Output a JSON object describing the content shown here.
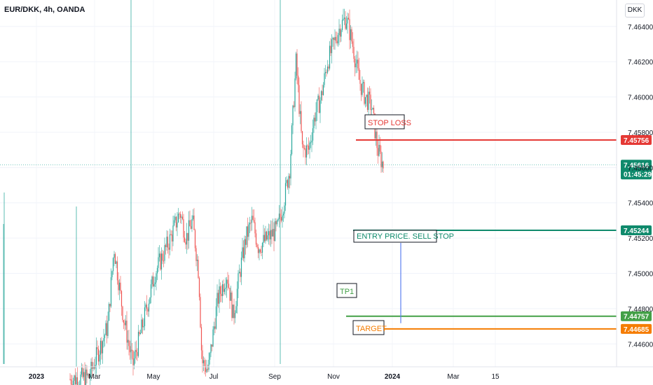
{
  "header": {
    "title": "EUR/DKK, 4h, OANDA",
    "currency_button": "DKK"
  },
  "colors": {
    "up": "#26a69a",
    "down": "#ef5350",
    "stop": "#e53935",
    "entry": "#0f8a6c",
    "tp": "#43a047",
    "target": "#f57c00",
    "link": "#5b7ff0"
  },
  "chart_data": {
    "type": "candlestick",
    "title": "EUR/DKK, 4h, OANDA",
    "y_ticks": [
      "7.46400",
      "7.46200",
      "7.46000",
      "7.45800",
      "7.45600",
      "7.45400",
      "7.45200",
      "7.45000",
      "7.44800",
      "7.44600"
    ],
    "ylim": [
      7.4447,
      7.4655
    ],
    "x_ticks": [
      {
        "label": "2023",
        "bold": true
      },
      {
        "label": "Mar",
        "bold": false
      },
      {
        "label": "May",
        "bold": false
      },
      {
        "label": "Jul",
        "bold": false
      },
      {
        "label": "Sep",
        "bold": false
      },
      {
        "label": "Nov",
        "bold": false
      },
      {
        "label": "2024",
        "bold": true
      },
      {
        "label": "Mar",
        "bold": false
      },
      {
        "label": "15",
        "bold": false
      }
    ],
    "grid": true,
    "price_tags": [
      {
        "key": "stop",
        "value": "7.45756"
      },
      {
        "key": "current",
        "value": "7.45616",
        "countdown": "01:45:29"
      },
      {
        "key": "entry",
        "value": "7.45244"
      },
      {
        "key": "tp",
        "value": "7.44757"
      },
      {
        "key": "target",
        "value": "7.44685"
      }
    ],
    "levels": [
      {
        "name": "STOP LOSS",
        "price": 7.45756
      },
      {
        "name": "ENTRY PRICE. SELL STOP",
        "price": 7.45244
      },
      {
        "name": "TP1",
        "price": 7.44757
      },
      {
        "name": "TARGET",
        "price": 7.44685
      }
    ],
    "current_price": 7.45616,
    "annotations": {
      "stop": "STOP LOSS",
      "entry": "ENTRY PRICE. SELL STOP",
      "tp": "TP1",
      "target": "TARGET"
    },
    "price_path": [
      [
        0,
        7.444
      ],
      [
        0.06,
        7.4441
      ],
      [
        0.12,
        7.447
      ],
      [
        0.14,
        7.4515
      ],
      [
        0.17,
        7.4475
      ],
      [
        0.2,
        7.4448
      ],
      [
        0.23,
        7.447
      ],
      [
        0.27,
        7.45
      ],
      [
        0.32,
        7.452
      ],
      [
        0.35,
        7.4535
      ],
      [
        0.37,
        7.452
      ],
      [
        0.39,
        7.453
      ],
      [
        0.41,
        7.45
      ],
      [
        0.42,
        7.445
      ],
      [
        0.44,
        7.4445
      ],
      [
        0.47,
        7.4485
      ],
      [
        0.5,
        7.45
      ],
      [
        0.52,
        7.4475
      ],
      [
        0.54,
        7.45
      ],
      [
        0.56,
        7.452
      ],
      [
        0.58,
        7.453
      ],
      [
        0.6,
        7.4515
      ],
      [
        0.63,
        7.452
      ],
      [
        0.66,
        7.4525
      ],
      [
        0.68,
        7.454
      ],
      [
        0.7,
        7.456
      ],
      [
        0.72,
        7.462
      ],
      [
        0.74,
        7.457
      ],
      [
        0.76,
        7.457
      ],
      [
        0.78,
        7.459
      ],
      [
        0.8,
        7.46
      ],
      [
        0.82,
        7.462
      ],
      [
        0.84,
        7.463
      ],
      [
        0.86,
        7.464
      ],
      [
        0.88,
        7.4645
      ],
      [
        0.9,
        7.463
      ],
      [
        0.92,
        7.461
      ],
      [
        0.94,
        7.46
      ],
      [
        0.96,
        7.4595
      ],
      [
        0.98,
        7.457
      ],
      [
        1.0,
        7.456
      ]
    ]
  }
}
